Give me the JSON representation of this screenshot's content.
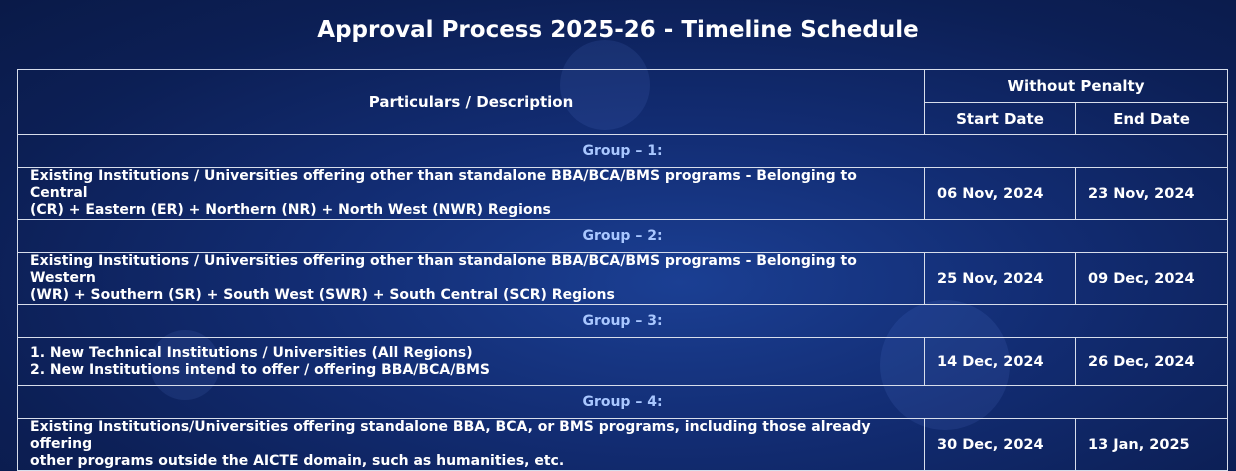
{
  "title": "Approval Process 2025-26 - Timeline Schedule",
  "table": {
    "header_description": "Particulars / Description",
    "header_group": "Without Penalty",
    "header_start": "Start Date",
    "header_end": "End Date"
  },
  "groups": [
    {
      "label": "Group – 1:",
      "lines": [
        "Existing Institutions / Universities offering other than standalone BBA/BCA/BMS programs - Belonging to Central",
        "(CR) + Eastern (ER) + Northern (NR) + North West (NWR) Regions"
      ],
      "start": "06 Nov, 2024",
      "end": "23 Nov, 2024"
    },
    {
      "label": "Group – 2:",
      "lines": [
        "Existing Institutions / Universities offering other than standalone BBA/BCA/BMS programs - Belonging to Western",
        "(WR) + Southern (SR) + South West (SWR) + South Central (SCR) Regions"
      ],
      "start": "25 Nov, 2024",
      "end": "09 Dec, 2024"
    },
    {
      "label": "Group – 3:",
      "lines": [
        "1. New Technical Institutions / Universities (All Regions)",
        "2. New Institutions intend to offer / offering BBA/BCA/BMS"
      ],
      "start": "14 Dec, 2024",
      "end": "26 Dec, 2024"
    },
    {
      "label": "Group – 4:",
      "lines": [
        "Existing Institutions/Universities offering standalone BBA, BCA, or BMS programs, including those already offering",
        "other programs outside the AICTE domain, such as humanities, etc."
      ],
      "start": "30 Dec, 2024",
      "end": "13 Jan, 2025"
    }
  ]
}
